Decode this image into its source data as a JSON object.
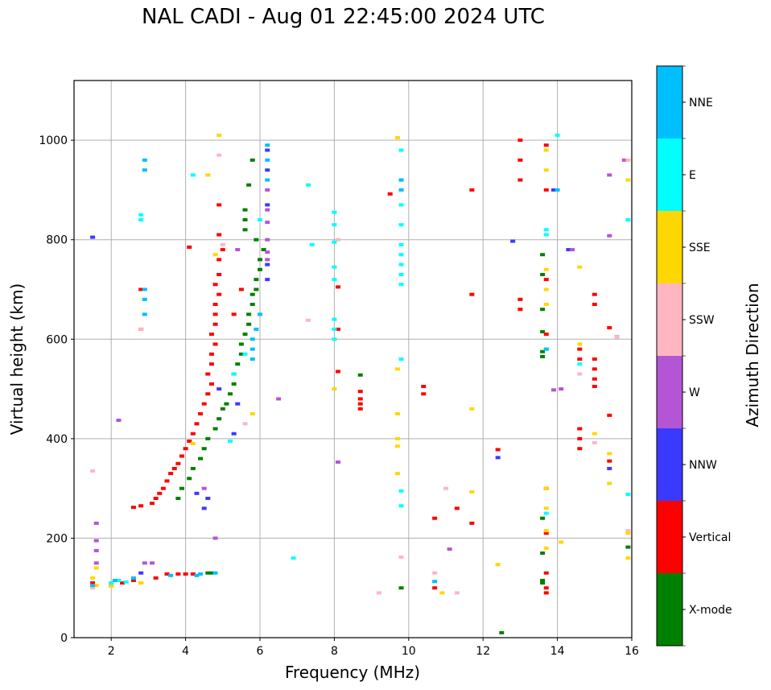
{
  "chart_data": {
    "type": "scatter",
    "title": "NAL CADI - Aug 01 22:45:00 2024 UTC",
    "xlabel": "Frequency (MHz)",
    "ylabel": "Virtual height (km)",
    "xlim": [
      1,
      16
    ],
    "ylim": [
      0,
      1120
    ],
    "xticks": [
      2,
      4,
      6,
      8,
      10,
      12,
      14,
      16
    ],
    "yticks": [
      0,
      200,
      400,
      600,
      800,
      1000
    ],
    "grid": true,
    "colorbar": {
      "label": "Azimuth Direction",
      "placement": "right",
      "categories": [
        {
          "name": "X-mode",
          "color": "#008000"
        },
        {
          "name": "Vertical",
          "color": "#ff0000"
        },
        {
          "name": "NNW",
          "color": "#3a3aff"
        },
        {
          "name": "W",
          "color": "#b455d6"
        },
        {
          "name": "SSW",
          "color": "#ffb6c1"
        },
        {
          "name": "SSE",
          "color": "#ffd700"
        },
        {
          "name": "E",
          "color": "#00ffff"
        },
        {
          "name": "NNE",
          "color": "#00bfff"
        }
      ]
    },
    "series": [
      {
        "name": "X-mode",
        "points": [
          [
            4.6,
            130
          ],
          [
            4.7,
            130
          ],
          [
            3.8,
            280
          ],
          [
            3.9,
            300
          ],
          [
            4.1,
            320
          ],
          [
            4.2,
            340
          ],
          [
            4.4,
            360
          ],
          [
            4.5,
            380
          ],
          [
            4.6,
            400
          ],
          [
            4.8,
            420
          ],
          [
            4.9,
            440
          ],
          [
            5.0,
            460
          ],
          [
            5.1,
            470
          ],
          [
            5.2,
            490
          ],
          [
            5.3,
            510
          ],
          [
            5.3,
            530
          ],
          [
            5.4,
            550
          ],
          [
            5.5,
            570
          ],
          [
            5.5,
            590
          ],
          [
            5.6,
            610
          ],
          [
            5.7,
            630
          ],
          [
            5.7,
            650
          ],
          [
            5.8,
            670
          ],
          [
            5.8,
            690
          ],
          [
            5.9,
            700
          ],
          [
            5.9,
            720
          ],
          [
            6.0,
            740
          ],
          [
            6.0,
            760
          ],
          [
            6.1,
            780
          ],
          [
            5.9,
            800
          ],
          [
            5.6,
            820
          ],
          [
            5.6,
            840
          ],
          [
            5.6,
            860
          ],
          [
            5.7,
            910
          ],
          [
            5.8,
            960
          ],
          [
            8.7,
            528
          ],
          [
            13.6,
            565
          ],
          [
            13.6,
            575
          ],
          [
            13.6,
            615
          ],
          [
            13.6,
            660
          ],
          [
            13.6,
            730
          ],
          [
            13.6,
            770
          ],
          [
            13.6,
            110
          ],
          [
            13.6,
            115
          ],
          [
            13.6,
            170
          ],
          [
            13.6,
            240
          ],
          [
            15.9,
            182
          ],
          [
            9.8,
            100
          ],
          [
            12.5,
            10
          ]
        ]
      },
      {
        "name": "Vertical",
        "points": [
          [
            1.5,
            110
          ],
          [
            2.0,
            105
          ],
          [
            2.3,
            110
          ],
          [
            2.6,
            115
          ],
          [
            2.8,
            110
          ],
          [
            3.2,
            120
          ],
          [
            3.5,
            128
          ],
          [
            3.8,
            128
          ],
          [
            4.0,
            128
          ],
          [
            4.2,
            128
          ],
          [
            2.6,
            262
          ],
          [
            2.8,
            265
          ],
          [
            3.1,
            270
          ],
          [
            3.2,
            280
          ],
          [
            3.3,
            290
          ],
          [
            3.4,
            300
          ],
          [
            3.5,
            315
          ],
          [
            3.6,
            330
          ],
          [
            3.7,
            340
          ],
          [
            3.8,
            350
          ],
          [
            3.9,
            365
          ],
          [
            4.0,
            380
          ],
          [
            4.1,
            395
          ],
          [
            4.2,
            410
          ],
          [
            4.3,
            430
          ],
          [
            4.4,
            450
          ],
          [
            4.5,
            470
          ],
          [
            4.6,
            490
          ],
          [
            4.7,
            510
          ],
          [
            4.6,
            530
          ],
          [
            4.7,
            550
          ],
          [
            4.7,
            570
          ],
          [
            4.8,
            590
          ],
          [
            4.7,
            610
          ],
          [
            4.8,
            630
          ],
          [
            4.8,
            650
          ],
          [
            4.8,
            670
          ],
          [
            4.9,
            690
          ],
          [
            4.8,
            710
          ],
          [
            4.9,
            730
          ],
          [
            4.9,
            760
          ],
          [
            5.0,
            780
          ],
          [
            4.9,
            810
          ],
          [
            4.9,
            870
          ],
          [
            2.8,
            700
          ],
          [
            2.8,
            620
          ],
          [
            4.1,
            785
          ],
          [
            5.5,
            700
          ],
          [
            5.3,
            650
          ],
          [
            13.0,
            920
          ],
          [
            13.0,
            960
          ],
          [
            13.0,
            1000
          ],
          [
            13.0,
            660
          ],
          [
            13.0,
            680
          ],
          [
            13.7,
            900
          ],
          [
            13.7,
            990
          ],
          [
            13.7,
            720
          ],
          [
            13.7,
            610
          ],
          [
            13.7,
            300
          ],
          [
            13.7,
            210
          ],
          [
            13.7,
            130
          ],
          [
            13.7,
            100
          ],
          [
            13.7,
            90
          ],
          [
            14.6,
            580
          ],
          [
            14.6,
            560
          ],
          [
            14.6,
            420
          ],
          [
            14.6,
            400
          ],
          [
            14.6,
            380
          ],
          [
            15.0,
            690
          ],
          [
            15.0,
            670
          ],
          [
            15.0,
            560
          ],
          [
            15.0,
            540
          ],
          [
            15.0,
            520
          ],
          [
            15.0,
            505
          ],
          [
            15.4,
            623
          ],
          [
            15.4,
            447
          ],
          [
            15.4,
            355
          ],
          [
            15.6,
            605
          ],
          [
            8.1,
            705
          ],
          [
            8.1,
            620
          ],
          [
            8.1,
            535
          ],
          [
            8.7,
            495
          ],
          [
            8.7,
            480
          ],
          [
            8.7,
            470
          ],
          [
            8.7,
            460
          ],
          [
            10.4,
            505
          ],
          [
            10.4,
            490
          ],
          [
            10.7,
            240
          ],
          [
            10.7,
            100
          ],
          [
            11.3,
            260
          ],
          [
            11.7,
            230
          ],
          [
            12.4,
            378
          ],
          [
            11.7,
            900
          ],
          [
            11.7,
            690
          ],
          [
            9.5,
            892
          ]
        ]
      },
      {
        "name": "NNW",
        "points": [
          [
            1.5,
            805
          ],
          [
            4.9,
            500
          ],
          [
            4.5,
            260
          ],
          [
            4.6,
            280
          ],
          [
            4.3,
            290
          ],
          [
            5.3,
            410
          ],
          [
            5.4,
            470
          ],
          [
            6.2,
            980
          ],
          [
            6.2,
            940
          ],
          [
            6.2,
            870
          ],
          [
            6.2,
            750
          ],
          [
            6.2,
            720
          ],
          [
            12.4,
            362
          ],
          [
            13.9,
            900
          ],
          [
            12.8,
            797
          ],
          [
            14.3,
            780
          ],
          [
            15.4,
            340
          ],
          [
            2.8,
            130
          ]
        ]
      },
      {
        "name": "W",
        "points": [
          [
            1.6,
            150
          ],
          [
            1.6,
            175
          ],
          [
            1.6,
            195
          ],
          [
            1.6,
            230
          ],
          [
            2.2,
            437
          ],
          [
            2.9,
            150
          ],
          [
            3.1,
            150
          ],
          [
            4.5,
            300
          ],
          [
            4.8,
            200
          ],
          [
            5.4,
            780
          ],
          [
            6.2,
            900
          ],
          [
            6.2,
            860
          ],
          [
            6.2,
            835
          ],
          [
            6.2,
            800
          ],
          [
            6.2,
            775
          ],
          [
            6.2,
            760
          ],
          [
            6.5,
            480
          ],
          [
            8.1,
            353
          ],
          [
            11.1,
            178
          ],
          [
            13.9,
            498
          ],
          [
            14.4,
            780
          ],
          [
            15.4,
            930
          ],
          [
            15.8,
            960
          ],
          [
            15.4,
            808
          ],
          [
            14.1,
            500
          ]
        ]
      },
      {
        "name": "SSW",
        "points": [
          [
            1.5,
            335
          ],
          [
            1.5,
            100
          ],
          [
            2.8,
            620
          ],
          [
            4.9,
            970
          ],
          [
            5.0,
            790
          ],
          [
            7.3,
            638
          ],
          [
            8.1,
            800
          ],
          [
            9.2,
            90
          ],
          [
            10.7,
            130
          ],
          [
            11.0,
            300
          ],
          [
            11.3,
            90
          ],
          [
            14.6,
            530
          ],
          [
            15.0,
            392
          ],
          [
            15.6,
            605
          ],
          [
            15.9,
            960
          ],
          [
            15.9,
            215
          ],
          [
            9.8,
            162
          ],
          [
            5.6,
            430
          ]
        ]
      },
      {
        "name": "SSE",
        "points": [
          [
            1.5,
            120
          ],
          [
            1.6,
            105
          ],
          [
            1.6,
            140
          ],
          [
            2.8,
            110
          ],
          [
            2.0,
            104
          ],
          [
            4.9,
            1010
          ],
          [
            4.6,
            930
          ],
          [
            4.8,
            770
          ],
          [
            4.2,
            390
          ],
          [
            5.8,
            450
          ],
          [
            8.0,
            500
          ],
          [
            9.7,
            1005
          ],
          [
            9.7,
            540
          ],
          [
            9.7,
            450
          ],
          [
            9.7,
            400
          ],
          [
            9.7,
            385
          ],
          [
            9.7,
            330
          ],
          [
            10.9,
            90
          ],
          [
            11.7,
            460
          ],
          [
            11.7,
            293
          ],
          [
            13.7,
            980
          ],
          [
            13.7,
            940
          ],
          [
            13.7,
            740
          ],
          [
            13.7,
            700
          ],
          [
            13.7,
            670
          ],
          [
            13.7,
            300
          ],
          [
            13.7,
            260
          ],
          [
            13.7,
            215
          ],
          [
            13.7,
            180
          ],
          [
            14.1,
            192
          ],
          [
            12.4,
            147
          ],
          [
            14.6,
            745
          ],
          [
            14.6,
            590
          ],
          [
            15.0,
            410
          ],
          [
            15.4,
            370
          ],
          [
            15.4,
            310
          ],
          [
            15.9,
            920
          ],
          [
            15.9,
            210
          ],
          [
            15.9,
            160
          ]
        ]
      },
      {
        "name": "E",
        "points": [
          [
            2.0,
            110
          ],
          [
            2.2,
            115
          ],
          [
            2.4,
            112
          ],
          [
            2.8,
            850
          ],
          [
            2.8,
            840
          ],
          [
            4.2,
            930
          ],
          [
            5.2,
            395
          ],
          [
            5.3,
            530
          ],
          [
            5.6,
            570
          ],
          [
            6.0,
            840
          ],
          [
            6.9,
            160
          ],
          [
            7.3,
            910
          ],
          [
            7.4,
            790
          ],
          [
            8.0,
            855
          ],
          [
            8.0,
            830
          ],
          [
            8.0,
            795
          ],
          [
            8.0,
            745
          ],
          [
            8.0,
            720
          ],
          [
            8.0,
            640
          ],
          [
            8.0,
            620
          ],
          [
            8.0,
            600
          ],
          [
            9.8,
            980
          ],
          [
            9.8,
            920
          ],
          [
            9.8,
            870
          ],
          [
            9.8,
            830
          ],
          [
            9.8,
            790
          ],
          [
            9.8,
            770
          ],
          [
            9.8,
            750
          ],
          [
            9.8,
            730
          ],
          [
            9.8,
            710
          ],
          [
            9.8,
            560
          ],
          [
            9.8,
            295
          ],
          [
            9.8,
            265
          ],
          [
            13.7,
            820
          ],
          [
            13.7,
            810
          ],
          [
            13.7,
            580
          ],
          [
            13.7,
            250
          ],
          [
            14.0,
            1010
          ],
          [
            14.6,
            550
          ],
          [
            15.9,
            840
          ],
          [
            15.9,
            288
          ]
        ]
      },
      {
        "name": "NNE",
        "points": [
          [
            1.5,
            105
          ],
          [
            2.1,
            115
          ],
          [
            2.6,
            120
          ],
          [
            2.9,
            960
          ],
          [
            2.9,
            940
          ],
          [
            2.9,
            650
          ],
          [
            2.9,
            680
          ],
          [
            2.9,
            700
          ],
          [
            3.6,
            125
          ],
          [
            4.3,
            125
          ],
          [
            4.4,
            128
          ],
          [
            4.8,
            130
          ],
          [
            5.8,
            560
          ],
          [
            5.8,
            580
          ],
          [
            5.8,
            600
          ],
          [
            5.9,
            620
          ],
          [
            6.0,
            650
          ],
          [
            6.2,
            990
          ],
          [
            6.2,
            960
          ],
          [
            6.2,
            920
          ],
          [
            9.8,
            920
          ],
          [
            9.8,
            900
          ],
          [
            10.7,
            113
          ],
          [
            13.7,
            580
          ],
          [
            14.0,
            900
          ]
        ]
      }
    ]
  }
}
